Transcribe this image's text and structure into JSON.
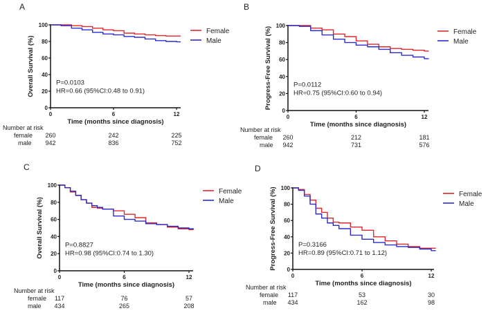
{
  "colors": {
    "female": "#e0262a",
    "male": "#2a2ad0"
  },
  "chart_data": [
    {
      "type": "line",
      "panel": "A",
      "ylabel": "Overall Survival (%)",
      "xlabel": "Time (months since diagnosis)",
      "xticks": [
        "0",
        "6",
        "12"
      ],
      "yticks": [
        "0",
        "20",
        "40",
        "60",
        "80",
        "100"
      ],
      "xlim": [
        0,
        12.4
      ],
      "ylim": [
        0,
        100
      ],
      "stats": [
        "P=0.0103",
        "HR=0.66 (95%CI:0.48 to 0.91)"
      ],
      "legend": "top-right",
      "series": [
        {
          "name": "Female",
          "x": [
            0,
            1,
            2,
            3,
            4,
            5,
            6,
            7,
            8,
            9,
            10,
            11,
            12.4
          ],
          "y": [
            100,
            100,
            99,
            98,
            96,
            94,
            93,
            90,
            89,
            88,
            87,
            86.5,
            86.5
          ]
        },
        {
          "name": "Male",
          "x": [
            0,
            1,
            2,
            3,
            4,
            5,
            6,
            7,
            8,
            9,
            10,
            11,
            12,
            12.4
          ],
          "y": [
            100,
            99,
            96,
            94,
            91,
            89,
            88,
            86,
            85,
            83,
            81,
            80,
            79.5,
            79.5
          ]
        }
      ],
      "risk": {
        "title": "Number at risk",
        "rows": [
          {
            "label": "female",
            "values": [
              "260",
              "242",
              "225"
            ]
          },
          {
            "label": "male",
            "values": [
              "942",
              "836",
              "752"
            ]
          }
        ]
      }
    },
    {
      "type": "line",
      "panel": "B",
      "ylabel": "Progress-Free Survival (%)",
      "xlabel": "Time (months since diagnosis)",
      "xticks": [
        "0",
        "6",
        "12"
      ],
      "yticks": [
        "0",
        "20",
        "40",
        "60",
        "80",
        "100"
      ],
      "xlim": [
        0,
        12.4
      ],
      "ylim": [
        0,
        100
      ],
      "stats": [
        "P=0.0112",
        "HR=0.75 (95%CI:0.60 to 0.94)"
      ],
      "legend": "top-right",
      "series": [
        {
          "name": "Female",
          "x": [
            0,
            1,
            2,
            3,
            4,
            5,
            6,
            7,
            8,
            9,
            10,
            11,
            12,
            12.4
          ],
          "y": [
            100,
            100,
            97,
            95,
            90,
            87,
            82,
            78,
            75,
            73,
            72,
            71,
            70,
            70
          ]
        },
        {
          "name": "Male",
          "x": [
            0,
            1,
            2,
            3,
            4,
            5,
            6,
            7,
            8,
            9,
            10,
            11,
            12,
            12.4
          ],
          "y": [
            100,
            99,
            94,
            89,
            84,
            80,
            77,
            75,
            72,
            68,
            65,
            63,
            61,
            61
          ]
        }
      ],
      "risk": {
        "title": "Number at risk",
        "rows": [
          {
            "label": "female",
            "values": [
              "260",
              "212",
              "181"
            ]
          },
          {
            "label": "male",
            "values": [
              "942",
              "731",
              "576"
            ]
          }
        ]
      }
    },
    {
      "type": "line",
      "panel": "C",
      "ylabel": "Overall Survival (%)",
      "xlabel": "Time (months since diagnosis)",
      "xticks": [
        "0",
        "6",
        "12"
      ],
      "yticks": [
        "0",
        "20",
        "40",
        "60",
        "80",
        "100"
      ],
      "xlim": [
        0,
        12.4
      ],
      "ylim": [
        0,
        100
      ],
      "stats": [
        "P=0.8827",
        "HR=0.98 (95%CI:0.74 to 1.30)"
      ],
      "legend": "top-right",
      "series": [
        {
          "name": "Female",
          "x": [
            0,
            0.5,
            1,
            1.5,
            2,
            2.5,
            3,
            3.5,
            4,
            5,
            6,
            7,
            8,
            9,
            10,
            11,
            12,
            12.4
          ],
          "y": [
            100,
            97,
            92,
            88,
            83,
            79,
            74,
            73,
            72,
            70,
            66,
            62,
            56,
            54,
            51,
            49,
            48,
            48
          ]
        },
        {
          "name": "Male",
          "x": [
            0,
            0.5,
            1,
            1.5,
            2,
            2.5,
            3,
            3.5,
            4,
            5,
            6,
            7,
            8,
            9,
            10,
            11,
            12,
            12.4
          ],
          "y": [
            100,
            97,
            93,
            88,
            83,
            79,
            76,
            74,
            72,
            64,
            60,
            58,
            55,
            54,
            52,
            50,
            49,
            48
          ]
        }
      ],
      "risk": {
        "title": "Number at risk",
        "rows": [
          {
            "label": "female",
            "values": [
              "117",
              "76",
              "57"
            ]
          },
          {
            "label": "male",
            "values": [
              "434",
              "265",
              "208"
            ]
          }
        ]
      }
    },
    {
      "type": "line",
      "panel": "D",
      "ylabel": "Progress-Free Survival (%)",
      "xlabel": "Time (months since diagnosis)",
      "xticks": [
        "0",
        "6",
        "12"
      ],
      "yticks": [
        "0",
        "20",
        "40",
        "60",
        "80",
        "100"
      ],
      "xlim": [
        0,
        12.4
      ],
      "ylim": [
        0,
        100
      ],
      "stats": [
        "P=0.3166",
        "HR=0.89 (95%CI:0.71 to 1.12)"
      ],
      "legend": "top-right",
      "series": [
        {
          "name": "Female",
          "x": [
            0,
            0.5,
            1,
            1.5,
            2,
            2.5,
            3,
            3.5,
            4,
            5,
            6,
            7,
            8,
            9,
            10,
            11,
            12,
            12.4
          ],
          "y": [
            100,
            98,
            92,
            85,
            75,
            70,
            63,
            58,
            57,
            52,
            48,
            40,
            35,
            31,
            28,
            26,
            26,
            26
          ]
        },
        {
          "name": "Male",
          "x": [
            0,
            0.5,
            1,
            1.5,
            2,
            2.5,
            3,
            3.5,
            4,
            5,
            6,
            7,
            8,
            9,
            10,
            11,
            12,
            12.4
          ],
          "y": [
            100,
            97,
            90,
            80,
            68,
            63,
            57,
            54,
            50,
            42,
            37,
            33,
            30,
            28,
            27,
            25,
            23,
            23
          ]
        }
      ],
      "risk": {
        "title": "Number at risk",
        "rows": [
          {
            "label": "female",
            "values": [
              "117",
              "53",
              "30"
            ]
          },
          {
            "label": "male",
            "values": [
              "434",
              "162",
              "98"
            ]
          }
        ]
      }
    }
  ]
}
